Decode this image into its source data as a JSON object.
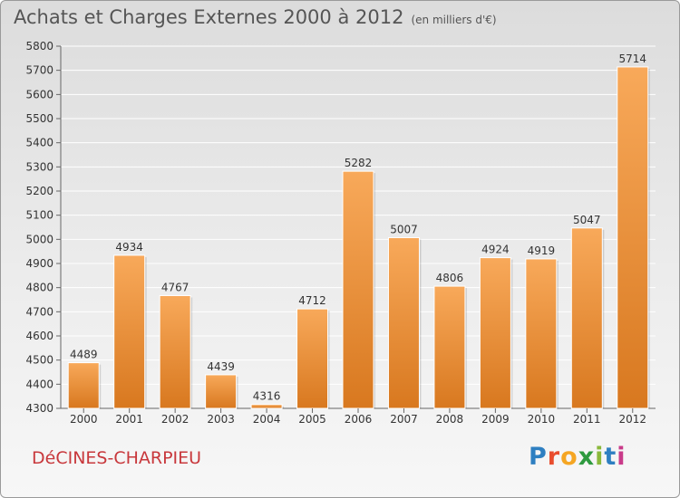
{
  "header": {
    "title": "Achats et Charges Externes 2000 à 2012",
    "unit": "(en milliers d'€)"
  },
  "footer": {
    "city": "DéCINES-CHARPIEU",
    "brand": "Proxiti",
    "brand_colors": [
      "#2e7fc1",
      "#e94d2e",
      "#f5a623",
      "#2e9a3f",
      "#8ab83b",
      "#2e7fc1",
      "#c93b8a"
    ]
  },
  "colors": {
    "bar_top": "#f8a95a",
    "bar_bottom": "#d8781f",
    "grid": "#ffffff",
    "axis_text": "#333333"
  },
  "chart_data": {
    "type": "bar",
    "categories": [
      "2000",
      "2001",
      "2002",
      "2003",
      "2004",
      "2005",
      "2006",
      "2007",
      "2008",
      "2009",
      "2010",
      "2011",
      "2012"
    ],
    "values": [
      4489,
      4934,
      4767,
      4439,
      4316,
      4712,
      5282,
      5007,
      4806,
      4924,
      4919,
      5047,
      5714
    ],
    "ylim": [
      4300,
      5800
    ],
    "ytick_step": 100,
    "grid": true,
    "data_labels": true
  }
}
